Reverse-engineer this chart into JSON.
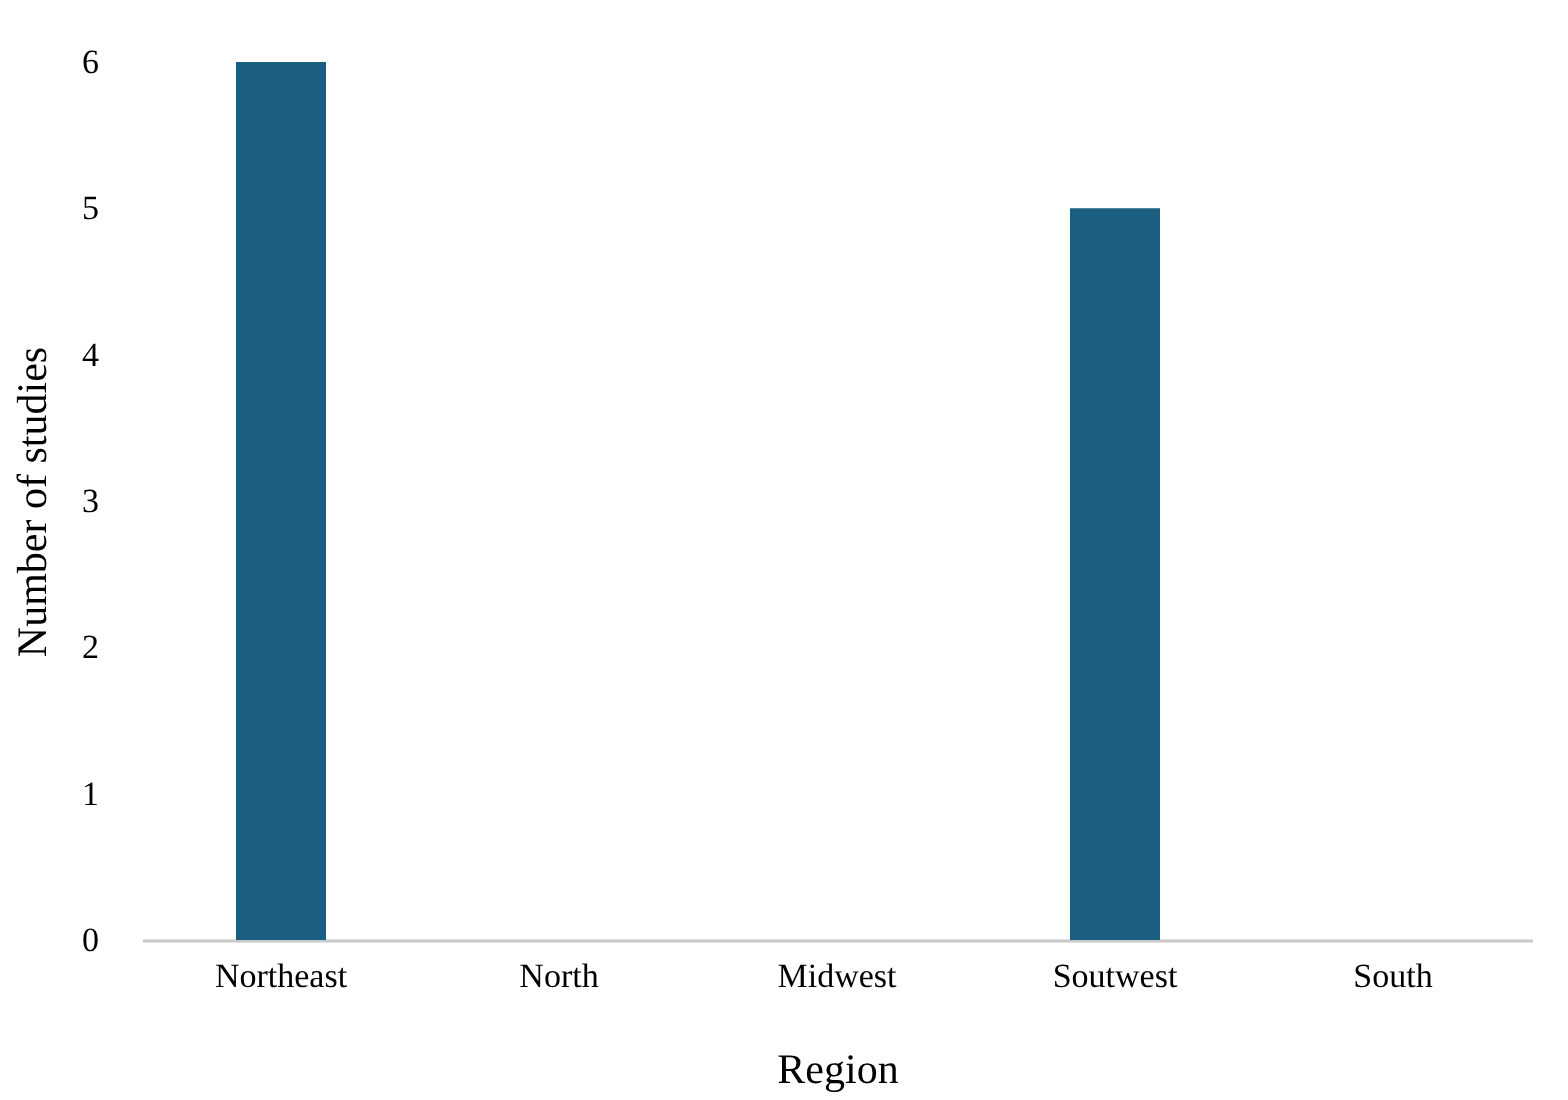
{
  "chart_data": {
    "type": "bar",
    "xlabel": "Region",
    "ylabel": "Number of studies",
    "categories": [
      "Northeast",
      "North",
      "Midwest",
      "Soutwest",
      "South"
    ],
    "values": [
      6,
      0,
      0,
      5,
      0
    ],
    "color": "#1a5f80",
    "ylim": [
      0,
      6
    ],
    "yticks": [
      0,
      1,
      2,
      3,
      4,
      5,
      6
    ],
    "grid": false
  }
}
